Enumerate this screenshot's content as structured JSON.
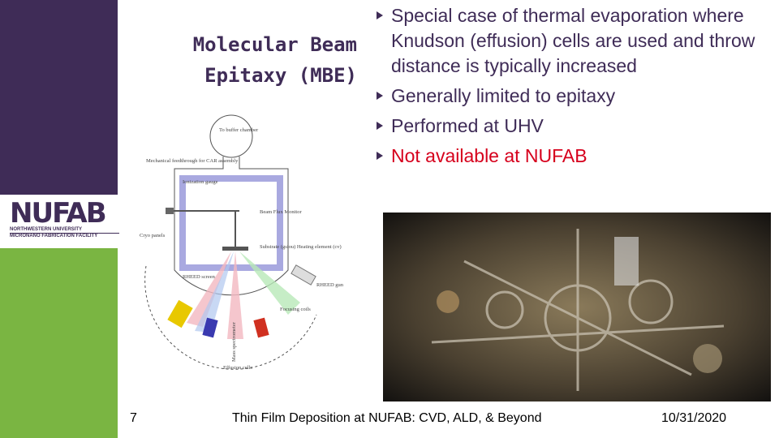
{
  "sidebar": {
    "logo": {
      "name": "NUFAB",
      "line1": "NORTHWESTERN UNIVERSITY",
      "line2": "MICRONANO FABRICATION FACILITY"
    }
  },
  "title": [
    "Molecular Beam",
    "Epitaxy (MBE)"
  ],
  "bullets": [
    "Special case of thermal evaporation where Knudson (effusion) cells are used and throw distance is typically increased",
    "Generally limited to epitaxy",
    "Performed at UHV",
    "Not available at NUFAB"
  ],
  "diagram": {
    "labels": [
      "To buffer chamber",
      "Mechanical feedthrough for CAR assembly",
      "Ionization gauge",
      "Beam Flux Monitor",
      "Cryo panels",
      "Substrate (gsiou) Heating element (cv)",
      "RHEED screen",
      "RHEED gun",
      "Focusing coils",
      "Mass spectrometer",
      "Effusion cells"
    ]
  },
  "footer": {
    "page": "7",
    "text": "Thin Film Deposition at NUFAB: CVD,  ALD, & Beyond",
    "date": "10/31/2020"
  }
}
